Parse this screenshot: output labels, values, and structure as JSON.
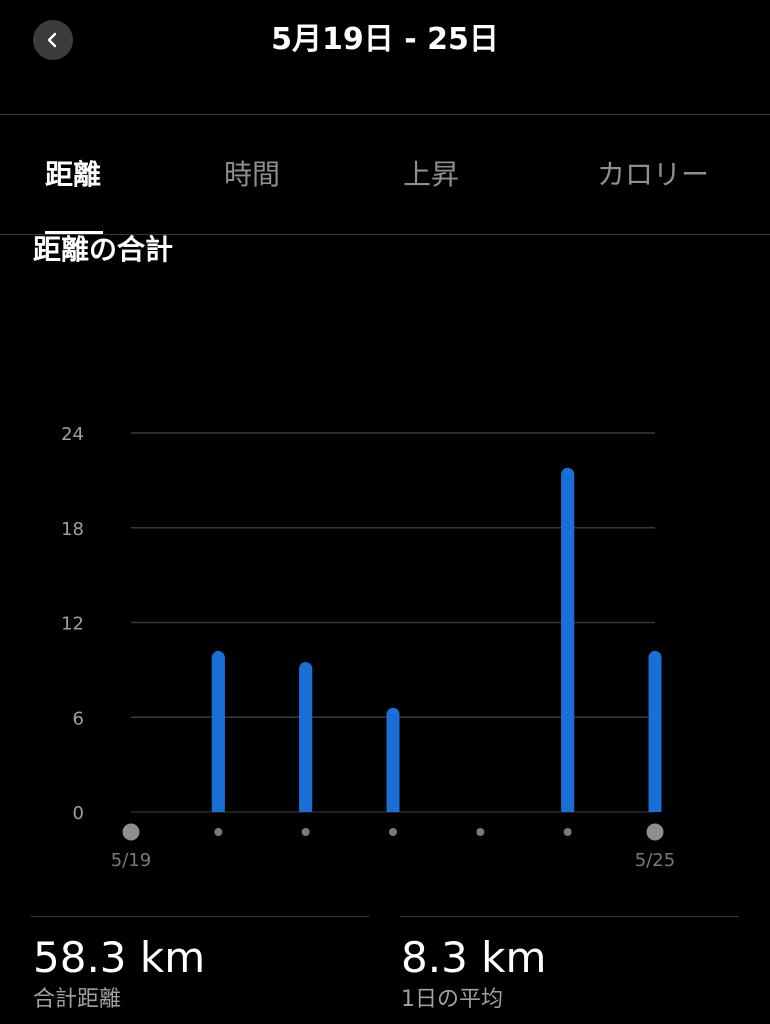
{
  "header": {
    "title": "5月19日 - 25日"
  },
  "tabs": [
    {
      "label": "距離",
      "active": true
    },
    {
      "label": "時間",
      "active": false
    },
    {
      "label": "上昇",
      "active": false
    },
    {
      "label": "カロリー",
      "active": false
    }
  ],
  "section": {
    "title": "距離の合計"
  },
  "chart_data": {
    "type": "bar",
    "categories": [
      "5/19",
      "5/20",
      "5/21",
      "5/22",
      "5/23",
      "5/24",
      "5/25"
    ],
    "x_tick_labels": [
      "5/19",
      "",
      "",
      "",
      "",
      "",
      "5/25"
    ],
    "values": [
      0,
      10.2,
      9.5,
      6.6,
      0,
      21.8,
      10.2
    ],
    "y_ticks": [
      "0",
      "6",
      "12",
      "18",
      "24"
    ],
    "ylim": [
      0,
      24
    ],
    "bar_color": "#1a6fd6",
    "grid": true
  },
  "stats": {
    "total": {
      "value": "58.3 km",
      "label": "合計距離"
    },
    "average": {
      "value": "8.3 km",
      "label": "1日の平均"
    }
  }
}
